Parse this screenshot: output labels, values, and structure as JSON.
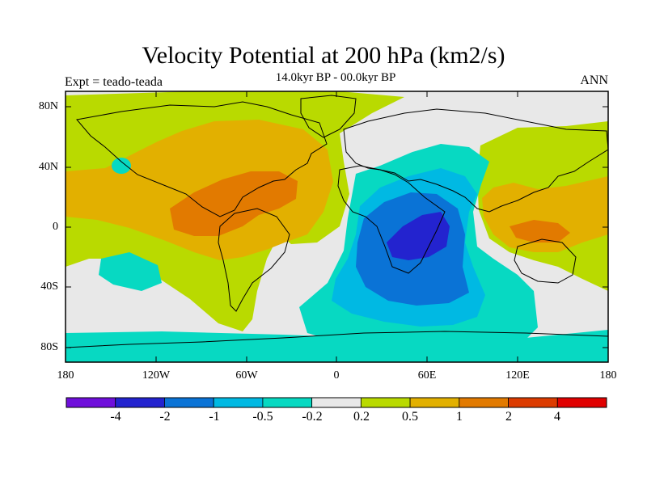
{
  "title": "Velocity Potential at 200 hPa (km2/s)",
  "subtitle": "14.0kyr BP - 00.0kyr BP",
  "left_label": "Expt = teado-teada",
  "right_label": "ANN",
  "y_ticks": [
    "80N",
    "40N",
    "0",
    "40S",
    "80S"
  ],
  "x_ticks": [
    "180",
    "120W",
    "60W",
    "0",
    "60E",
    "120E",
    "180"
  ],
  "colorbar": {
    "labels": [
      "-4",
      "-2",
      "-1",
      "-0.5",
      "-0.2",
      "0.2",
      "0.5",
      "1",
      "2",
      "4"
    ],
    "colors": [
      "#6f0fdb",
      "#2323cf",
      "#0a73d6",
      "#00b9e3",
      "#07d9c2",
      "#e8e8e8",
      "#b9da00",
      "#e2b000",
      "#e27a00",
      "#dc3b00",
      "#e00000"
    ]
  },
  "palette": {
    "neutral": "#e8e8e8",
    "pos_1": "#b9da00",
    "pos_2": "#e2b000",
    "pos_3": "#e27a00",
    "neg_1": "#07d9c2",
    "neg_2": "#00b9e3",
    "neg_3": "#0a73d6",
    "neg_4": "#2323cf"
  }
}
